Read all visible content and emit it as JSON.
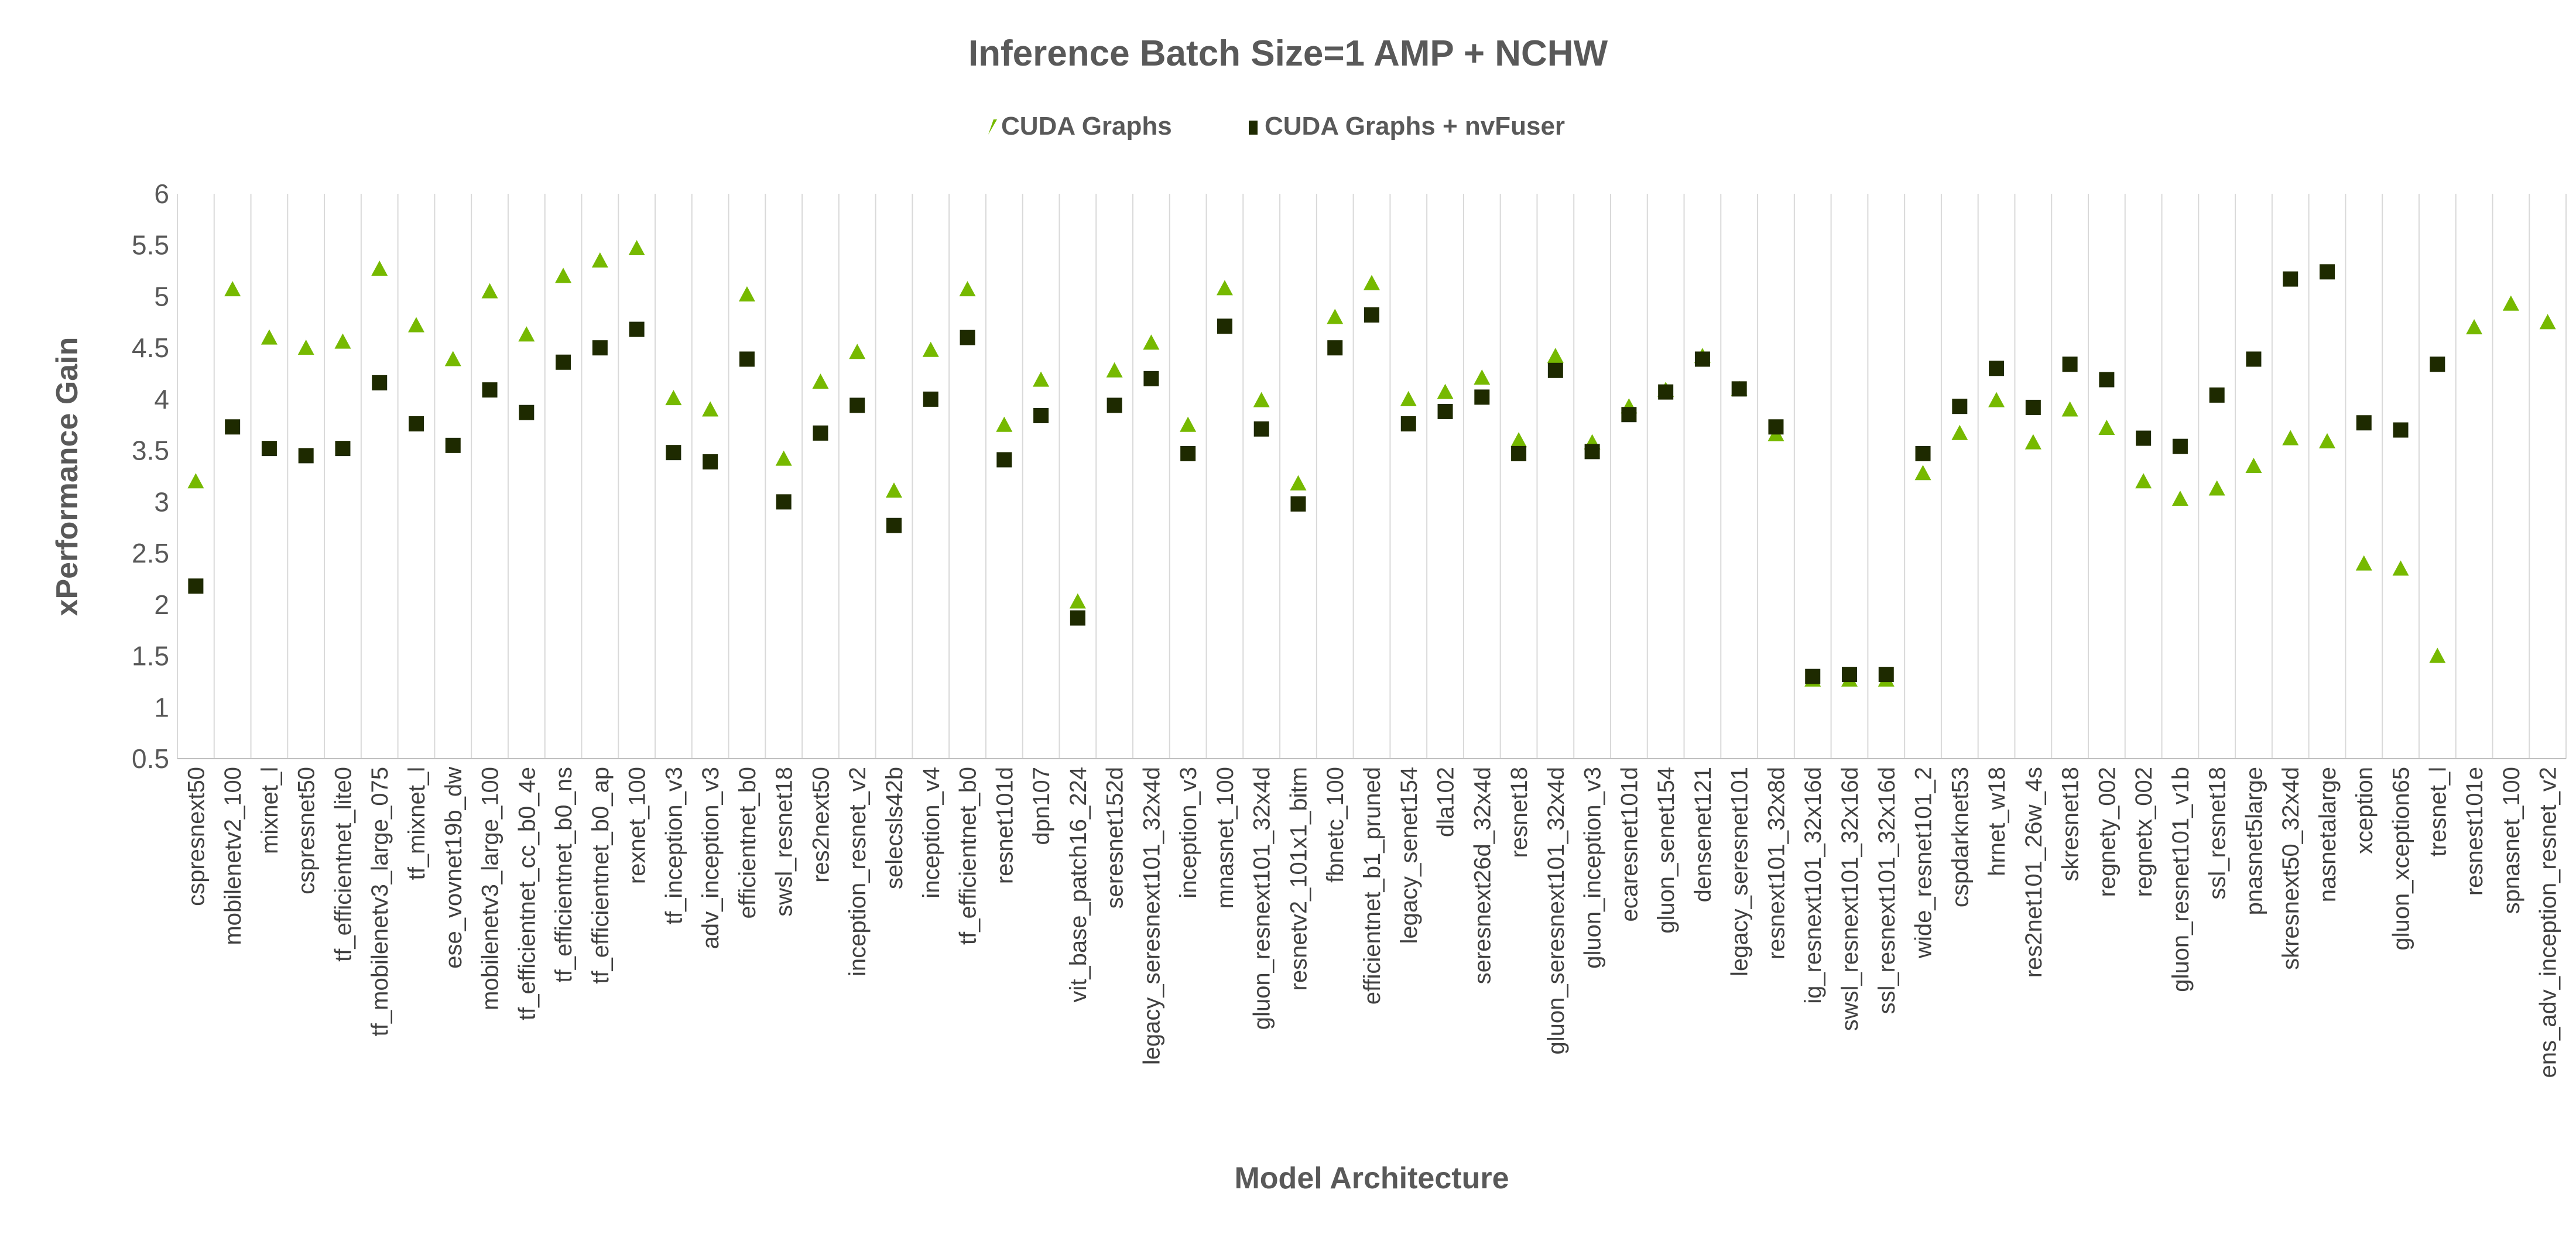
{
  "chart_data": {
    "type": "scatter",
    "title": "Inference Batch Size=1 AMP + NCHW",
    "xlabel": "Model Architecture",
    "ylabel": "xPerformance Gain",
    "ylim": [
      0.5,
      6
    ],
    "yticks": [
      "0.5",
      "1",
      "1.5",
      "2",
      "2.5",
      "3",
      "3.5",
      "4",
      "4.5",
      "5",
      "5.5",
      "6"
    ],
    "grid": "vertical",
    "legend_position": "top-center",
    "categories": [
      "cspresnext50",
      "mobilenetv2_100",
      "mixnet_l",
      "cspresnet50",
      "tf_efficientnet_lite0",
      "tf_mobilenetv3_large_075",
      "tf_mixnet_l",
      "ese_vovnet19b_dw",
      "mobilenetv3_large_100",
      "tf_efficientnet_cc_b0_4e",
      "tf_efficientnet_b0_ns",
      "tf_efficientnet_b0_ap",
      "rexnet_100",
      "tf_inception_v3",
      "adv_inception_v3",
      "efficientnet_b0",
      "swsl_resnet18",
      "res2next50",
      "inception_resnet_v2",
      "selecsls42b",
      "inception_v4",
      "tf_efficientnet_b0",
      "resnet101d",
      "dpn107",
      "vit_base_patch16_224",
      "seresnet152d",
      "legacy_seresnext101_32x4d",
      "inception_v3",
      "mnasnet_100",
      "gluon_resnext101_32x4d",
      "resnetv2_101x1_bitm",
      "fbnetc_100",
      "efficientnet_b1_pruned",
      "legacy_senet154",
      "dla102",
      "seresnext26d_32x4d",
      "resnet18",
      "gluon_seresnext101_32x4d",
      "gluon_inception_v3",
      "ecaresnet101d",
      "gluon_senet154",
      "densenet121",
      "legacy_seresnet101",
      "resnext101_32x8d",
      "ig_resnext101_32x16d",
      "swsl_resnext101_32x16d",
      "ssl_resnext101_32x16d",
      "wide_resnet101_2",
      "cspdarknet53",
      "hrnet_w18",
      "res2net101_26w_4s",
      "skresnet18",
      "regnety_002",
      "regnetx_002",
      "gluon_resnet101_v1b",
      "ssl_resnet18",
      "pnasnet5large",
      "skresnext50_32x4d",
      "nasnetalarge",
      "xception",
      "gluon_xception65",
      "tresnet_l",
      "resnest101e",
      "spnasnet_100",
      "ens_adv_inception_resnet_v2"
    ],
    "series": [
      {
        "name": "CUDA Graphs",
        "marker": "triangle",
        "color": "#76B900",
        "values": [
          3.2,
          5.07,
          4.6,
          4.5,
          4.56,
          5.27,
          4.72,
          4.39,
          5.05,
          4.63,
          5.2,
          5.35,
          5.47,
          4.01,
          3.9,
          5.02,
          3.42,
          4.17,
          4.46,
          3.11,
          4.48,
          5.07,
          3.75,
          4.19,
          2.03,
          4.28,
          4.55,
          3.75,
          5.08,
          3.99,
          3.18,
          4.8,
          5.13,
          4.0,
          4.07,
          4.21,
          3.6,
          4.42,
          3.58,
          3.93,
          4.09,
          4.42,
          4.1,
          3.66,
          1.27,
          1.27,
          1.27,
          3.28,
          3.67,
          3.99,
          3.58,
          3.9,
          3.72,
          3.2,
          3.03,
          3.13,
          3.35,
          3.62,
          3.59,
          2.4,
          2.35,
          1.5,
          4.7,
          4.93,
          4.75
        ]
      },
      {
        "name": "CUDA Graphs + nvFuser",
        "marker": "square",
        "color": "#1E2A00",
        "values": [
          2.18,
          3.73,
          3.52,
          3.45,
          3.52,
          4.16,
          3.76,
          3.55,
          4.09,
          3.87,
          4.36,
          4.5,
          4.68,
          3.48,
          3.39,
          4.39,
          3.0,
          3.67,
          3.94,
          2.77,
          4.0,
          4.6,
          3.41,
          3.84,
          1.87,
          3.94,
          4.2,
          3.47,
          4.71,
          3.71,
          2.98,
          4.5,
          4.82,
          3.76,
          3.88,
          4.02,
          3.47,
          4.28,
          3.49,
          3.85,
          4.07,
          4.39,
          4.1,
          3.73,
          1.3,
          1.32,
          1.32,
          3.47,
          3.93,
          4.3,
          3.92,
          4.34,
          4.19,
          3.62,
          3.54,
          4.04,
          4.39,
          5.17,
          5.24,
          3.77,
          3.7,
          4.34,
          null,
          null,
          null
        ]
      }
    ]
  }
}
